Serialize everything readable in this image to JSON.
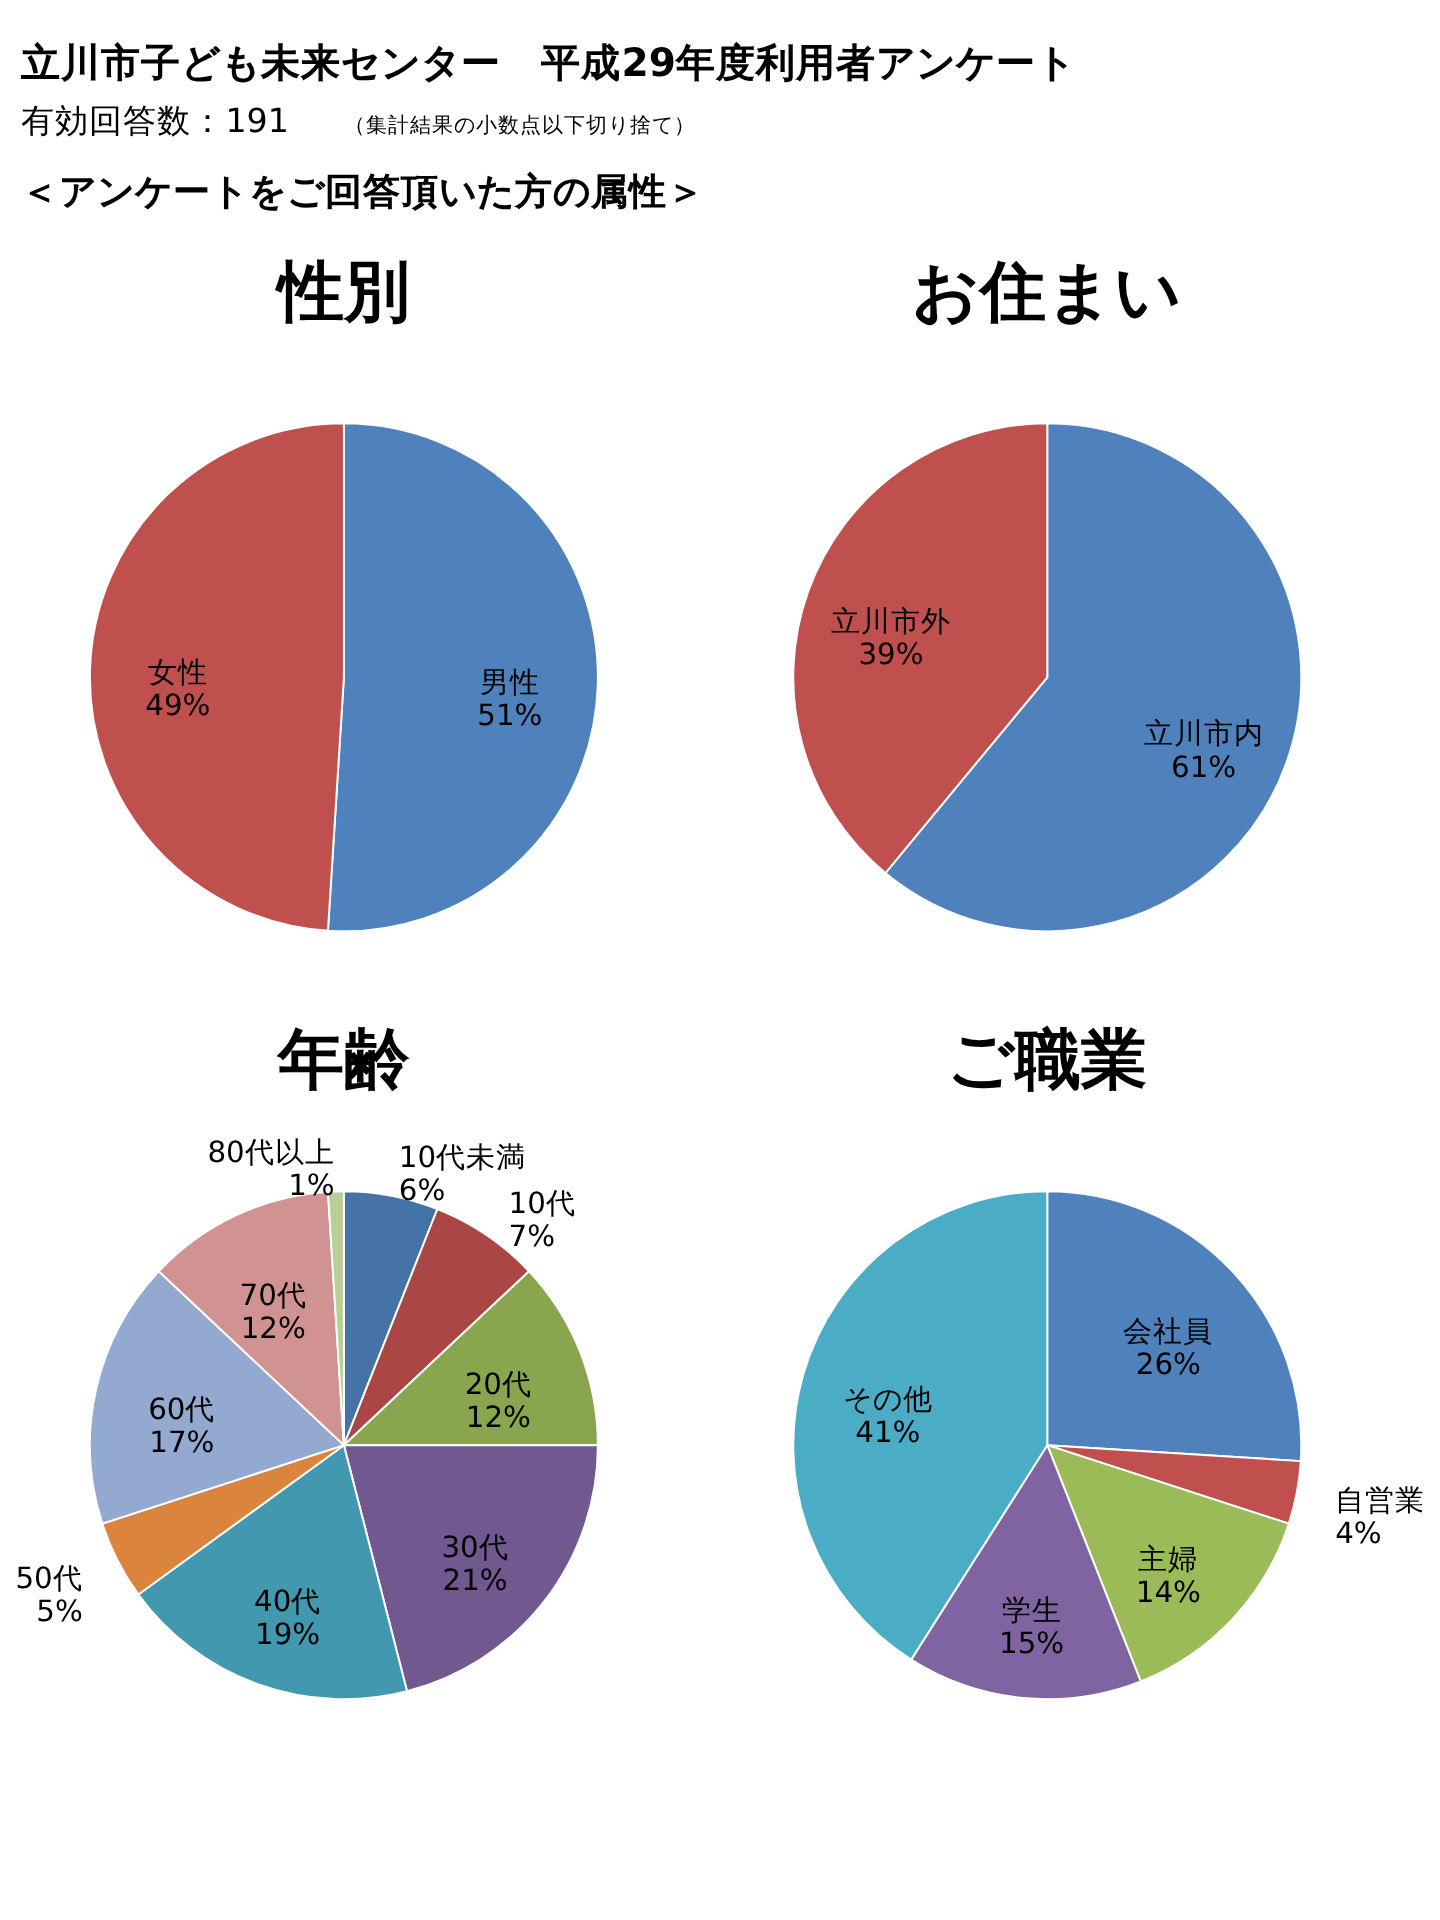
{
  "chart_data": [
    {
      "type": "other",
      "title": "立川市子ども未来センター　平成29年度利用者アンケート",
      "subtitle": "有効回答数：191",
      "annotations": [
        "（集計結果の小数点以下切り捨て）",
        "＜アンケートをご回答頂いた方の属性＞"
      ]
    },
    {
      "type": "pie",
      "title": "性別",
      "categories": [
        "男性",
        "女性"
      ],
      "values": [
        51,
        49
      ],
      "value_labels": [
        "51%",
        "49%"
      ],
      "colors": [
        "#4f81bd",
        "#c0504d"
      ]
    },
    {
      "type": "pie",
      "title": "お住まい",
      "categories": [
        "立川市内",
        "立川市外"
      ],
      "values": [
        61,
        39
      ],
      "value_labels": [
        "61%",
        "39%"
      ],
      "colors": [
        "#4f81bd",
        "#c0504d"
      ]
    },
    {
      "type": "pie",
      "title": "年齢",
      "categories": [
        "10代未満",
        "10代",
        "20代",
        "30代",
        "40代",
        "50代",
        "60代",
        "70代",
        "80代以上"
      ],
      "values": [
        6,
        7,
        12,
        21,
        19,
        5,
        17,
        12,
        1
      ],
      "value_labels": [
        "6%",
        "7%",
        "12%",
        "21%",
        "19%",
        "5%",
        "17%",
        "12%",
        "1%"
      ],
      "colors": [
        "#4572a7",
        "#aa4643",
        "#89a54e",
        "#71588f",
        "#4198af",
        "#db843d",
        "#93a9cf",
        "#d19392",
        "#b9cd96"
      ]
    },
    {
      "type": "pie",
      "title": "ご職業",
      "categories": [
        "会社員",
        "自営業",
        "主婦",
        "学生",
        "その他"
      ],
      "values": [
        26,
        4,
        14,
        15,
        41
      ],
      "value_labels": [
        "26%",
        "4%",
        "14%",
        "15%",
        "41%"
      ],
      "colors": [
        "#4f81bd",
        "#c0504d",
        "#9bbb59",
        "#8064a2",
        "#4bacc6"
      ]
    }
  ]
}
